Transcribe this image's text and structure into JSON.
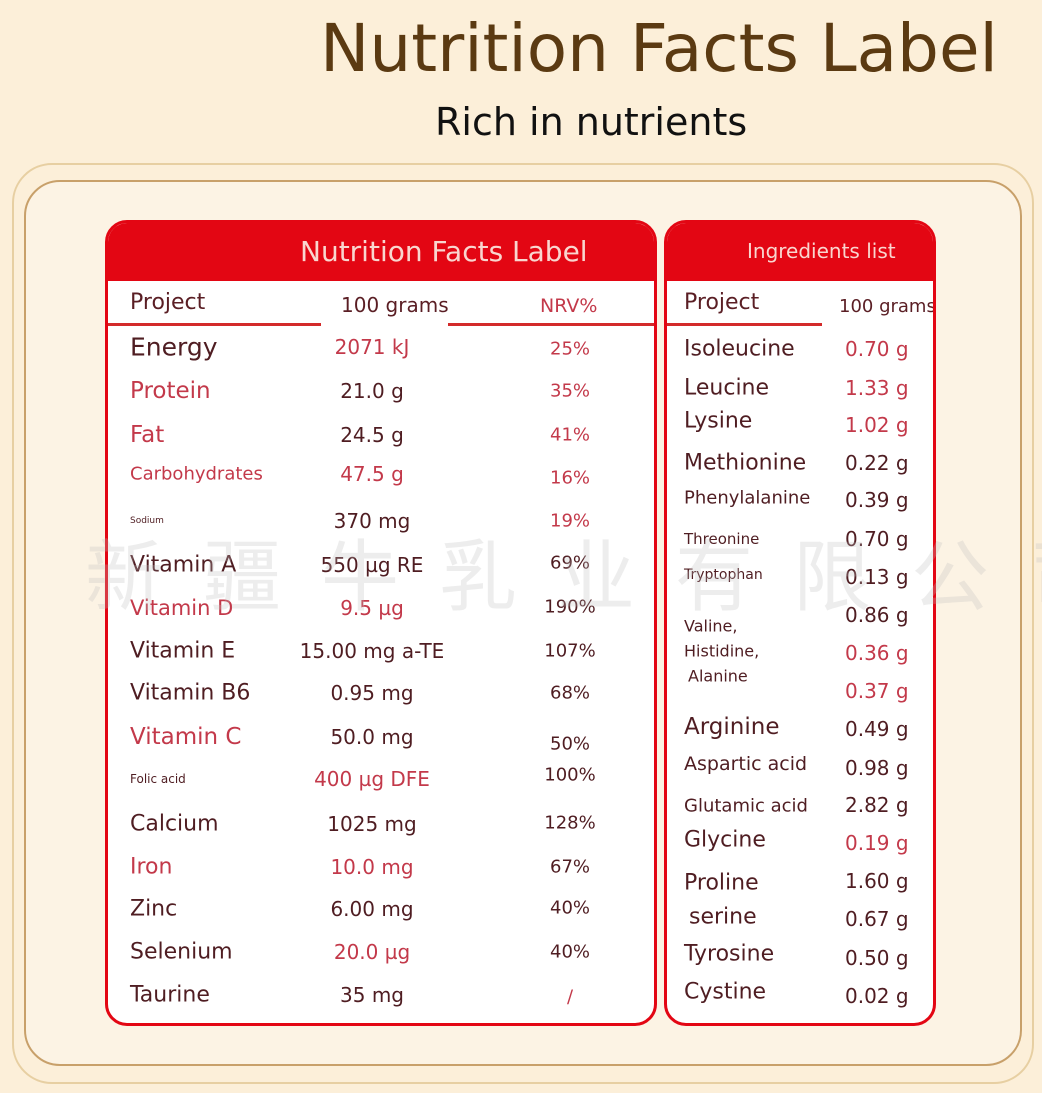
{
  "header": {
    "title": "Nutrition Facts Label",
    "subtitle": "Rich in nutrients"
  },
  "colors": {
    "background": "#fcefd9",
    "accent_red": "#e30613",
    "text_dark": "#4f1d22",
    "text_red": "#c3394a",
    "title_brown": "#5b3a12"
  },
  "nutrition": {
    "title": "Nutrition Facts Label",
    "columns": {
      "project": "Project",
      "amount": "100 grams",
      "nrv": "NRV%"
    },
    "rows": [
      {
        "name": "Energy",
        "amount": "2071 kJ",
        "nrv": "25%"
      },
      {
        "name": "Protein",
        "amount": "21.0 g",
        "nrv": "35%"
      },
      {
        "name": "Fat",
        "amount": "24.5 g",
        "nrv": "41%"
      },
      {
        "name": "Carbohydrates",
        "amount": "47.5 g",
        "nrv": "16%"
      },
      {
        "name": "Sodium",
        "amount": "370 mg",
        "nrv": "19%"
      },
      {
        "name": "Vitamin A",
        "amount": "550 µg RE",
        "nrv": "69%"
      },
      {
        "name": "Vitamin D",
        "amount": "9.5 µg",
        "nrv": "190%"
      },
      {
        "name": "Vitamin E",
        "amount": "15.00 mg a-TE",
        "nrv": "107%"
      },
      {
        "name": "Vitamin B6",
        "amount": "0.95 mg",
        "nrv": "68%"
      },
      {
        "name": "Vitamin C",
        "amount": "50.0 mg",
        "nrv": "50%"
      },
      {
        "name": "Folic acid",
        "amount": "400 µg DFE",
        "nrv": "100%"
      },
      {
        "name": "Calcium",
        "amount": "1025 mg",
        "nrv": "128%"
      },
      {
        "name": "Iron",
        "amount": "10.0 mg",
        "nrv": "67%"
      },
      {
        "name": "Zinc",
        "amount": "6.00 mg",
        "nrv": "40%"
      },
      {
        "name": "Selenium",
        "amount": "20.0 µg",
        "nrv": "40%"
      },
      {
        "name": "Taurine",
        "amount": "35 mg",
        "nrv": "/"
      }
    ]
  },
  "ingredients": {
    "title": "Ingredients list",
    "columns": {
      "project": "Project",
      "amount": "100 grams"
    },
    "names": [
      "Isoleucine",
      "Leucine",
      "Lysine",
      "Methionine",
      "Phenylalanine",
      "Threonine",
      "Tryptophan",
      "Valine,",
      "Histidine,",
      "Alanine",
      "Arginine",
      "Aspartic acid",
      "Glutamic acid",
      "Glycine",
      "Proline",
      "serine",
      "Tyrosine",
      "Cystine"
    ],
    "amounts": [
      "0.70 g",
      "1.33 g",
      "1.02 g",
      "0.22 g",
      "0.39 g",
      "0.70 g",
      "0.13 g",
      "0.86 g",
      "0.36 g",
      "0.37 g",
      "0.49 g",
      "0.98 g",
      "2.82 g",
      "0.19 g",
      "1.60 g",
      "0.67 g",
      "0.50 g",
      "0.02 g"
    ]
  }
}
